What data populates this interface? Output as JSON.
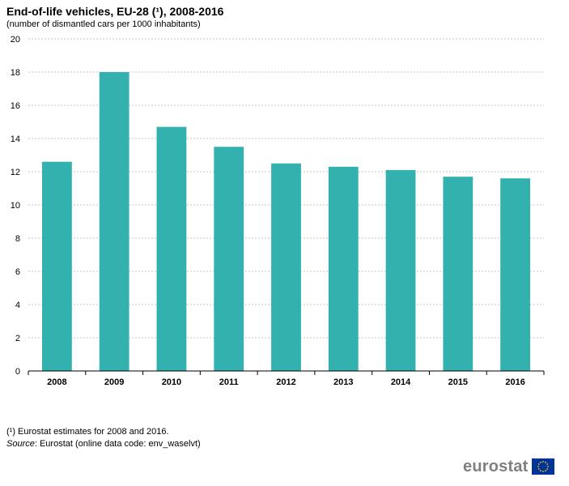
{
  "chart_data": {
    "type": "bar",
    "title": "End-of-life vehicles, EU-28 (¹), 2008-2016",
    "subtitle": "(number of dismantled cars per 1000 inhabitants)",
    "categories": [
      "2008",
      "2009",
      "2010",
      "2011",
      "2012",
      "2013",
      "2014",
      "2015",
      "2016"
    ],
    "values": [
      12.6,
      18.0,
      14.7,
      13.5,
      12.5,
      12.3,
      12.1,
      11.7,
      11.6
    ],
    "ylim": [
      0,
      20
    ],
    "yticks": [
      "0",
      "2",
      "4",
      "6",
      "8",
      "10",
      "12",
      "14",
      "16",
      "18",
      "20"
    ],
    "xlabel": "",
    "ylabel": "",
    "grid": true,
    "bar_color": "#33b1ae"
  },
  "notes": {
    "footnote": "(¹) Eurostat estimates for 2008 and 2016.",
    "source_lead": "Source",
    "source_text": ": Eurostat (online data code: env_waselvt)"
  },
  "logo": {
    "text": "eurostat",
    "icon": "eu-flag-icon",
    "flag_color": "#003399",
    "star_color": "#ffcc00"
  }
}
